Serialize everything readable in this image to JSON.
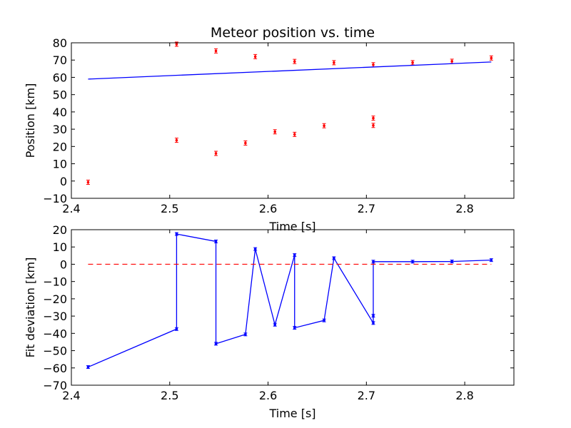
{
  "chart_data": [
    {
      "type": "scatter",
      "title": "Meteor position vs. time",
      "xlabel": "Time [s]",
      "ylabel": "Position [km]",
      "xlim": [
        2.4,
        2.85
      ],
      "ylim": [
        -10,
        80
      ],
      "xticks": [
        "2.4",
        "2.5",
        "2.6",
        "2.7",
        "2.8"
      ],
      "xtick_values": [
        2.4,
        2.5,
        2.6,
        2.7,
        2.8
      ],
      "yticks": [
        "−10",
        "0",
        "10",
        "20",
        "30",
        "40",
        "50",
        "60",
        "70",
        "80"
      ],
      "ytick_values": [
        -10,
        0,
        10,
        20,
        30,
        40,
        50,
        60,
        70,
        80
      ],
      "grid": false,
      "series": [
        {
          "kind": "errorbar-points",
          "color": "#ff0000",
          "x": [
            2.417,
            2.507,
            2.507,
            2.547,
            2.547,
            2.577,
            2.587,
            2.607,
            2.627,
            2.627,
            2.657,
            2.667,
            2.707,
            2.707,
            2.707,
            2.747,
            2.787,
            2.827
          ],
          "y": [
            -0.7,
            79.2,
            23.6,
            75.3,
            16.0,
            22.0,
            72.0,
            28.5,
            69.2,
            27.0,
            32.0,
            68.5,
            67.3,
            36.4,
            32.2,
            68.5,
            69.3,
            71.2
          ]
        },
        {
          "kind": "fit-line",
          "color": "#0000ff",
          "x": [
            2.417,
            2.827
          ],
          "y": [
            59.0,
            68.9
          ]
        }
      ]
    },
    {
      "type": "line",
      "title": "",
      "xlabel": "Time [s]",
      "ylabel": "Fit deviation [km]",
      "xlim": [
        2.4,
        2.85
      ],
      "ylim": [
        -70,
        20
      ],
      "xticks": [
        "2.4",
        "2.5",
        "2.6",
        "2.7",
        "2.8"
      ],
      "xtick_values": [
        2.4,
        2.5,
        2.6,
        2.7,
        2.8
      ],
      "yticks": [
        "−70",
        "−60",
        "−50",
        "−40",
        "−30",
        "−20",
        "−10",
        "0",
        "10",
        "20"
      ],
      "ytick_values": [
        -70,
        -60,
        -50,
        -40,
        -30,
        -20,
        -10,
        0,
        10,
        20
      ],
      "grid": false,
      "series": [
        {
          "kind": "deviation-line",
          "color": "#0000ff",
          "x": [
            2.417,
            2.507,
            2.507,
            2.547,
            2.547,
            2.577,
            2.587,
            2.607,
            2.627,
            2.627,
            2.657,
            2.667,
            2.707,
            2.707,
            2.707,
            2.747,
            2.787,
            2.827
          ],
          "y": [
            -59.5,
            -37.5,
            17.5,
            13.2,
            -46.0,
            -40.6,
            8.8,
            -35.0,
            5.3,
            -36.8,
            -32.5,
            3.5,
            -34.0,
            -29.8,
            1.5,
            1.5,
            1.6,
            2.4
          ]
        },
        {
          "kind": "zero-line",
          "color": "#ff0000",
          "x": [
            2.417,
            2.827
          ],
          "y": [
            0,
            0
          ]
        }
      ]
    }
  ]
}
